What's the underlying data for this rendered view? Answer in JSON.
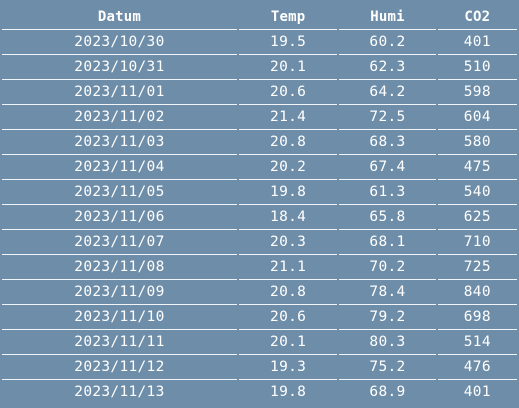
{
  "table": {
    "headers": {
      "date": "Datum",
      "temp": "Temp",
      "humi": "Humi",
      "co2": "CO2"
    },
    "rows": [
      {
        "date": "2023/10/30",
        "temp": "19.5",
        "humi": "60.2",
        "co2": "401"
      },
      {
        "date": "2023/10/31",
        "temp": "20.1",
        "humi": "62.3",
        "co2": "510"
      },
      {
        "date": "2023/11/01",
        "temp": "20.6",
        "humi": "64.2",
        "co2": "598"
      },
      {
        "date": "2023/11/02",
        "temp": "21.4",
        "humi": "72.5",
        "co2": "604"
      },
      {
        "date": "2023/11/03",
        "temp": "20.8",
        "humi": "68.3",
        "co2": "580"
      },
      {
        "date": "2023/11/04",
        "temp": "20.2",
        "humi": "67.4",
        "co2": "475"
      },
      {
        "date": "2023/11/05",
        "temp": "19.8",
        "humi": "61.3",
        "co2": "540"
      },
      {
        "date": "2023/11/06",
        "temp": "18.4",
        "humi": "65.8",
        "co2": "625"
      },
      {
        "date": "2023/11/07",
        "temp": "20.3",
        "humi": "68.1",
        "co2": "710"
      },
      {
        "date": "2023/11/08",
        "temp": "21.1",
        "humi": "70.2",
        "co2": "725"
      },
      {
        "date": "2023/11/09",
        "temp": "20.8",
        "humi": "78.4",
        "co2": "840"
      },
      {
        "date": "2023/11/10",
        "temp": "20.6",
        "humi": "79.2",
        "co2": "698"
      },
      {
        "date": "2023/11/11",
        "temp": "20.1",
        "humi": "80.3",
        "co2": "514"
      },
      {
        "date": "2023/11/12",
        "temp": "19.3",
        "humi": "75.2",
        "co2": "476"
      },
      {
        "date": "2023/11/13",
        "temp": "19.8",
        "humi": "68.9",
        "co2": "401"
      }
    ]
  },
  "colors": {
    "background": "#6e8da8",
    "text": "#ffffff",
    "row_divider": "#f2f5f8"
  }
}
